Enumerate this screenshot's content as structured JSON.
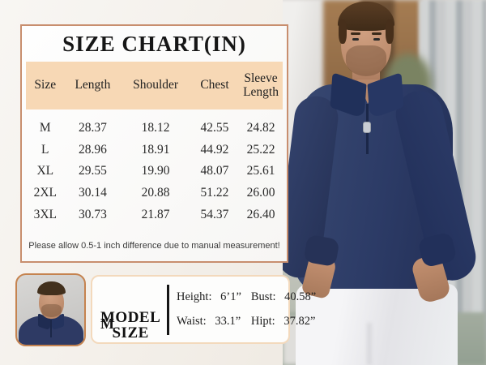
{
  "size_chart": {
    "title": "SIZE CHART(IN)",
    "columns": [
      "Size",
      "Length",
      "Shoulder",
      "Chest",
      "Sleeve Length"
    ],
    "rows": [
      [
        "M",
        "28.37",
        "18.12",
        "42.55",
        "24.82"
      ],
      [
        "L",
        "28.96",
        "18.91",
        "44.92",
        "25.22"
      ],
      [
        "XL",
        "29.55",
        "19.90",
        "48.07",
        "25.61"
      ],
      [
        "2XL",
        "30.14",
        "20.88",
        "51.22",
        "26.00"
      ],
      [
        "3XL",
        "30.73",
        "21.87",
        "54.37",
        "26.40"
      ]
    ],
    "note": "Please allow 0.5-1 inch difference due to manual measurement!"
  },
  "model_info": {
    "label_top": "MODEL",
    "label_bottom": "SIZE",
    "size_value": "M",
    "measurements": [
      {
        "label": "Height:",
        "value": "6’1”"
      },
      {
        "label": "Bust:",
        "value": "40.58”"
      },
      {
        "label": "Waist:",
        "value": "33.1”"
      },
      {
        "label": "Hipt:",
        "value": "37.82”"
      }
    ]
  },
  "colors": {
    "card_border": "#c88e6e",
    "header_bg": "#f7d8b5",
    "thumb_border": "#c5834f",
    "info_box_border": "#f3d9bc",
    "sweater_navy": "#2e3a64",
    "pants_white": "#f2f2f4",
    "page_background": "#f3efe9"
  }
}
